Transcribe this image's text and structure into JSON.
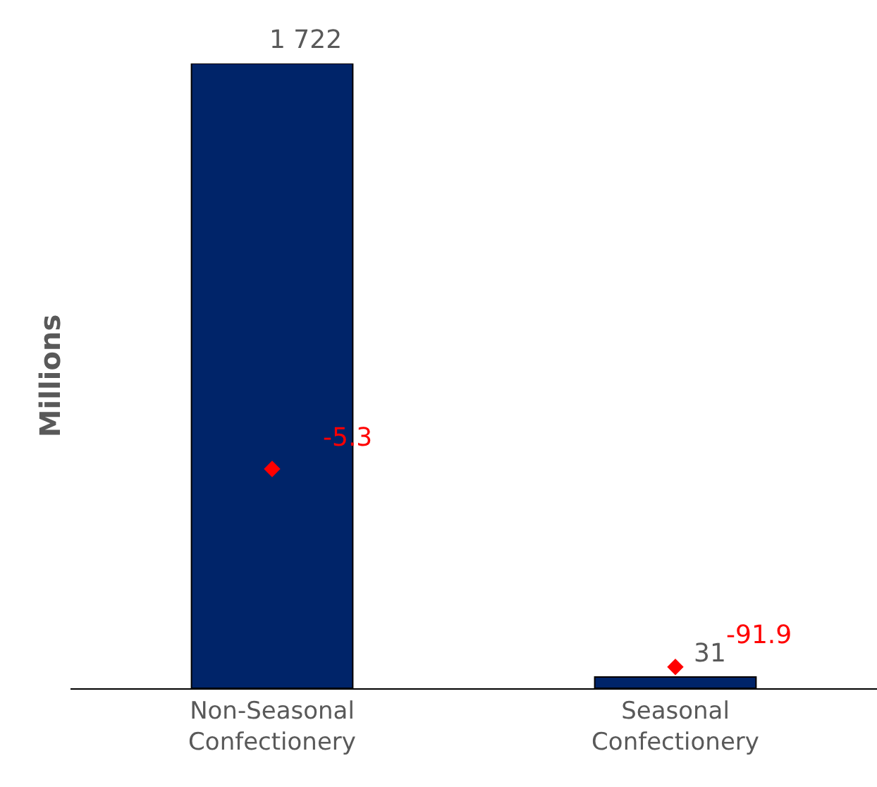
{
  "chart_data": {
    "type": "bar",
    "ylabel": "Millions",
    "categories": [
      "Non-Seasonal Confectionery",
      "Seasonal Confectionery"
    ],
    "series": [
      {
        "color": "#002469",
        "values": [
          1722,
          31
        ],
        "value_labels": [
          "1 722",
          "31"
        ]
      },
      {
        "type": "scatter",
        "axis": "y2",
        "color": "#ff0000",
        "marker": "diamond",
        "values": [
          -5.3,
          -91.9
        ],
        "value_labels": [
          "-5.3",
          "-91.9"
        ]
      }
    ],
    "ylim": [
      0,
      1722
    ],
    "tick_labels": "x"
  }
}
